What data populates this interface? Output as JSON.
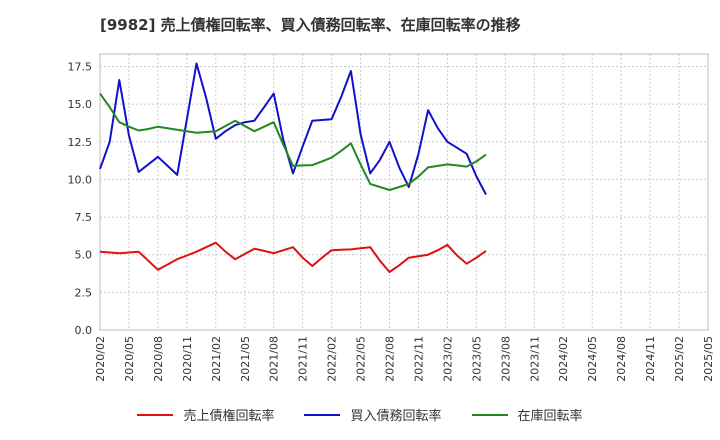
{
  "chart_data": {
    "type": "line",
    "title": "[9982]  売上債権回転率、買入債務回転率、在庫回転率の推移",
    "xlabel": "",
    "ylabel": "",
    "ylim": [
      0,
      18.33
    ],
    "yticks": [
      "0.0",
      "2.5",
      "5.0",
      "7.5",
      "10.0",
      "12.5",
      "15.0",
      "17.5"
    ],
    "ytick_values": [
      0,
      2.5,
      5,
      7.5,
      10,
      12.5,
      15,
      17.5
    ],
    "xticks": [
      "2020/02",
      "2020/05",
      "2020/08",
      "2020/11",
      "2021/02",
      "2021/05",
      "2021/08",
      "2021/11",
      "2022/02",
      "2022/05",
      "2022/08",
      "2022/11",
      "2023/02",
      "2023/05",
      "2023/08",
      "2023/11",
      "2024/02",
      "2024/05",
      "2024/08",
      "2024/11",
      "2025/02",
      "2025/05"
    ],
    "grid": true,
    "legend_position": "bottom",
    "series": [
      {
        "name": "売上債権回転率",
        "color": "#dd1111",
        "values": [
          5.2,
          5.15,
          5.1,
          5.15,
          5.2,
          4.6,
          4.0,
          4.35,
          4.7,
          4.95,
          5.2,
          5.5,
          5.8,
          5.2,
          4.7,
          5.05,
          5.4,
          5.25,
          5.1,
          5.3,
          5.5,
          4.8,
          4.25,
          4.8,
          5.3,
          5.33,
          5.35,
          5.43,
          5.5,
          4.6,
          3.85,
          4.3,
          4.8,
          4.9,
          5.0,
          5.3,
          5.65,
          4.95,
          4.4,
          4.8,
          5.25
        ]
      },
      {
        "name": "買入債務回転率",
        "color": "#1111cc",
        "values": [
          10.7,
          12.5,
          16.6,
          12.9,
          10.5,
          11.0,
          11.5,
          10.9,
          10.3,
          14.0,
          17.7,
          15.4,
          12.7,
          13.2,
          13.6,
          13.8,
          13.9,
          14.8,
          15.7,
          12.6,
          10.4,
          12.2,
          13.9,
          13.95,
          14.0,
          15.5,
          17.2,
          13.0,
          10.4,
          11.3,
          12.5,
          10.8,
          9.5,
          11.7,
          14.6,
          13.4,
          12.5,
          12.1,
          11.7,
          10.2,
          9.0
        ]
      },
      {
        "name": "在庫回転率",
        "color": "#228822",
        "values": [
          15.7,
          14.8,
          13.8,
          13.5,
          13.25,
          13.35,
          13.5,
          13.4,
          13.3,
          13.2,
          13.1,
          13.15,
          13.2,
          13.55,
          13.9,
          13.55,
          13.2,
          13.5,
          13.8,
          12.3,
          10.9,
          10.93,
          10.95,
          11.2,
          11.45,
          11.9,
          12.4,
          11.0,
          9.7,
          9.5,
          9.3,
          9.5,
          9.7,
          10.2,
          10.8,
          10.9,
          11.0,
          10.93,
          10.85,
          11.2,
          11.65
        ]
      }
    ]
  }
}
